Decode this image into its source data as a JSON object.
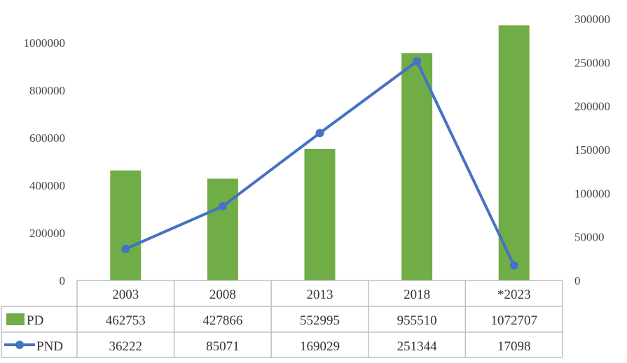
{
  "chart_data": {
    "type": "bar+line",
    "categories": [
      "2003",
      "2008",
      "2013",
      "2018",
      "*2023"
    ],
    "series": [
      {
        "name": "PD",
        "type": "bar",
        "axis": "left",
        "color": "#70ad47",
        "values": [
          462753,
          427866,
          552995,
          955510,
          1072707
        ]
      },
      {
        "name": "PND",
        "type": "line",
        "axis": "right",
        "color": "#4472c4",
        "values": [
          36222,
          85071,
          169029,
          251344,
          17098
        ]
      }
    ],
    "y_left": {
      "range": [
        0,
        1000000
      ],
      "ticks": [
        0,
        200000,
        400000,
        600000,
        800000,
        1000000
      ]
    },
    "y_right": {
      "range": [
        0,
        300000
      ],
      "ticks": [
        0,
        50000,
        100000,
        150000,
        200000,
        250000,
        300000
      ]
    },
    "data_table": true,
    "grid": false
  }
}
